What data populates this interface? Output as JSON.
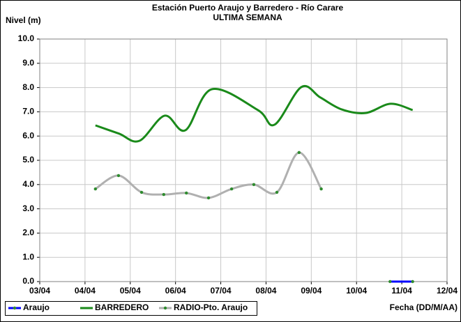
{
  "chart_data": {
    "type": "line",
    "title": "Estación Puerto Araujo y Barredero - Río Carare",
    "subtitle": "ULTIMA SEMANA",
    "y_label": "Nivel (m)",
    "x_label": "Fecha (DD/M/AA)",
    "xlim": [
      3,
      12
    ],
    "xticks": [
      {
        "value": 3,
        "label": "03/04"
      },
      {
        "value": 4,
        "label": "04/04"
      },
      {
        "value": 5,
        "label": "05/04"
      },
      {
        "value": 6,
        "label": "06/04"
      },
      {
        "value": 7,
        "label": "07/04"
      },
      {
        "value": 8,
        "label": "08/04"
      },
      {
        "value": 9,
        "label": "09/04"
      },
      {
        "value": 10,
        "label": "10/04"
      },
      {
        "value": 11,
        "label": "11/04"
      },
      {
        "value": 12,
        "label": "12/04"
      }
    ],
    "ylim": [
      0,
      10
    ],
    "yticks": [
      {
        "value": 0,
        "label": "0.0"
      },
      {
        "value": 1,
        "label": "1.0"
      },
      {
        "value": 2,
        "label": "2.0"
      },
      {
        "value": 3,
        "label": "3.0"
      },
      {
        "value": 4,
        "label": "4.0"
      },
      {
        "value": 5,
        "label": "5.0"
      },
      {
        "value": 6,
        "label": "6.0"
      },
      {
        "value": 7,
        "label": "7.0"
      },
      {
        "value": 8,
        "label": "8.0"
      },
      {
        "value": 9,
        "label": "9.0"
      },
      {
        "value": 10,
        "label": "10.0"
      }
    ],
    "grid": true,
    "smooth": true,
    "legend": "bottom-left",
    "series": [
      {
        "name": "Araujo",
        "color": "#0000ff",
        "marker_color": "#2e8b2e",
        "markers": true,
        "x": [
          10.74,
          11.24
        ],
        "values": [
          0,
          0
        ]
      },
      {
        "name": "BARREDERO",
        "color": "#1a8a1a",
        "markers": false,
        "x": [
          4.23,
          4.75,
          5.2,
          5.76,
          6.22,
          6.8,
          7.82,
          8.19,
          8.78,
          9.2,
          9.67,
          10.2,
          10.75,
          11.24
        ],
        "values": [
          6.44,
          6.1,
          5.8,
          6.84,
          6.24,
          7.93,
          7.07,
          6.47,
          8.02,
          7.59,
          7.1,
          6.95,
          7.33,
          7.07
        ]
      },
      {
        "name": "RADIO-Pto. Araujo",
        "color": "#b0b0b0",
        "marker_color": "#2e8b2e",
        "markers": true,
        "x": [
          4.23,
          4.74,
          5.25,
          5.74,
          6.24,
          6.73,
          7.24,
          7.73,
          8.24,
          8.73,
          9.22
        ],
        "values": [
          3.82,
          4.37,
          3.68,
          3.59,
          3.65,
          3.45,
          3.82,
          4.0,
          3.68,
          5.32,
          3.82
        ]
      }
    ]
  }
}
